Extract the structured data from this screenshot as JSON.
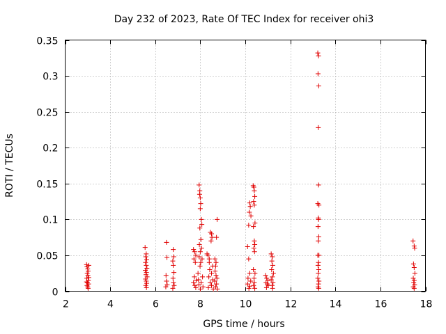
{
  "chart_data": {
    "type": "scatter",
    "title": "Day 232 of 2023, Rate Of TEC Index for receiver ohi3",
    "xlabel": "GPS time / hours",
    "ylabel": "ROTI / TECUs",
    "xlim": [
      2,
      18
    ],
    "ylim": [
      0,
      0.35
    ],
    "xticks": [
      2,
      4,
      6,
      8,
      10,
      12,
      14,
      16,
      18
    ],
    "yticks": [
      0,
      0.05,
      0.1,
      0.15,
      0.2,
      0.25,
      0.3,
      0.35
    ],
    "grid": true,
    "marker": "plus",
    "color": "#e00000",
    "series": [
      {
        "values": [
          [
            2.95,
            0.037
          ],
          [
            2.97,
            0.034
          ],
          [
            3.0,
            0.031
          ],
          [
            3.02,
            0.028
          ],
          [
            3.05,
            0.036
          ],
          [
            2.98,
            0.025
          ],
          [
            3.01,
            0.022
          ],
          [
            2.96,
            0.018
          ],
          [
            3.03,
            0.015
          ],
          [
            2.99,
            0.012
          ],
          [
            3.04,
            0.01
          ],
          [
            2.97,
            0.008
          ],
          [
            3.0,
            0.006
          ],
          [
            3.02,
            0.004
          ],
          [
            2.95,
            0.013
          ],
          [
            3.05,
            0.019
          ],
          [
            5.55,
            0.061
          ],
          [
            5.6,
            0.052
          ],
          [
            5.58,
            0.048
          ],
          [
            5.62,
            0.044
          ],
          [
            5.57,
            0.04
          ],
          [
            5.6,
            0.036
          ],
          [
            5.63,
            0.032
          ],
          [
            5.56,
            0.029
          ],
          [
            5.61,
            0.026
          ],
          [
            5.59,
            0.023
          ],
          [
            5.64,
            0.02
          ],
          [
            5.57,
            0.017
          ],
          [
            5.6,
            0.014
          ],
          [
            5.62,
            0.011
          ],
          [
            5.58,
            0.008
          ],
          [
            5.61,
            0.005
          ],
          [
            6.5,
            0.068
          ],
          [
            6.52,
            0.047
          ],
          [
            6.48,
            0.022
          ],
          [
            6.5,
            0.014
          ],
          [
            6.53,
            0.009
          ],
          [
            6.47,
            0.006
          ],
          [
            6.8,
            0.058
          ],
          [
            6.82,
            0.048
          ],
          [
            6.78,
            0.042
          ],
          [
            6.8,
            0.036
          ],
          [
            6.83,
            0.026
          ],
          [
            6.79,
            0.018
          ],
          [
            6.81,
            0.012
          ],
          [
            6.84,
            0.008
          ],
          [
            6.78,
            0.004
          ],
          [
            7.7,
            0.058
          ],
          [
            7.75,
            0.055
          ],
          [
            7.8,
            0.05
          ],
          [
            7.72,
            0.045
          ],
          [
            7.78,
            0.04
          ],
          [
            7.74,
            0.02
          ],
          [
            7.82,
            0.015
          ],
          [
            7.7,
            0.012
          ],
          [
            7.76,
            0.008
          ],
          [
            7.8,
            0.005
          ],
          [
            7.95,
            0.148
          ],
          [
            7.98,
            0.14
          ],
          [
            7.97,
            0.135
          ],
          [
            8.0,
            0.13
          ],
          [
            8.02,
            0.122
          ],
          [
            8.0,
            0.115
          ],
          [
            8.05,
            0.1
          ],
          [
            8.07,
            0.093
          ],
          [
            7.98,
            0.088
          ],
          [
            8.03,
            0.072
          ],
          [
            7.96,
            0.065
          ],
          [
            8.06,
            0.06
          ],
          [
            8.0,
            0.055
          ],
          [
            7.95,
            0.048
          ],
          [
            8.08,
            0.045
          ],
          [
            8.02,
            0.04
          ],
          [
            7.99,
            0.035
          ],
          [
            7.9,
            0.025
          ],
          [
            8.1,
            0.02
          ],
          [
            7.92,
            0.016
          ],
          [
            8.04,
            0.012
          ],
          [
            7.94,
            0.009
          ],
          [
            8.12,
            0.006
          ],
          [
            8.0,
            0.003
          ],
          [
            8.3,
            0.052
          ],
          [
            8.35,
            0.05
          ],
          [
            8.4,
            0.045
          ],
          [
            8.45,
            0.082
          ],
          [
            8.5,
            0.08
          ],
          [
            8.52,
            0.075
          ],
          [
            8.48,
            0.07
          ],
          [
            8.4,
            0.04
          ],
          [
            8.55,
            0.035
          ],
          [
            8.42,
            0.03
          ],
          [
            8.5,
            0.025
          ],
          [
            8.38,
            0.02
          ],
          [
            8.56,
            0.016
          ],
          [
            8.44,
            0.012
          ],
          [
            8.5,
            0.008
          ],
          [
            8.36,
            0.005
          ],
          [
            8.58,
            0.003
          ],
          [
            8.65,
            0.045
          ],
          [
            8.7,
            0.04
          ],
          [
            8.68,
            0.035
          ],
          [
            8.72,
            0.075
          ],
          [
            8.75,
            0.1
          ],
          [
            8.66,
            0.028
          ],
          [
            8.7,
            0.022
          ],
          [
            8.74,
            0.018
          ],
          [
            8.64,
            0.014
          ],
          [
            8.72,
            0.01
          ],
          [
            8.68,
            0.006
          ],
          [
            8.76,
            0.003
          ],
          [
            10.1,
            0.062
          ],
          [
            10.15,
            0.092
          ],
          [
            10.2,
            0.123
          ],
          [
            10.22,
            0.118
          ],
          [
            10.18,
            0.11
          ],
          [
            10.25,
            0.105
          ],
          [
            10.15,
            0.045
          ],
          [
            10.2,
            0.025
          ],
          [
            10.12,
            0.018
          ],
          [
            10.24,
            0.014
          ],
          [
            10.1,
            0.01
          ],
          [
            10.2,
            0.007
          ],
          [
            10.16,
            0.004
          ],
          [
            10.35,
            0.147
          ],
          [
            10.38,
            0.145
          ],
          [
            10.4,
            0.14
          ],
          [
            10.42,
            0.132
          ],
          [
            10.37,
            0.125
          ],
          [
            10.4,
            0.12
          ],
          [
            10.43,
            0.095
          ],
          [
            10.36,
            0.09
          ],
          [
            10.4,
            0.07
          ],
          [
            10.42,
            0.065
          ],
          [
            10.38,
            0.06
          ],
          [
            10.41,
            0.055
          ],
          [
            10.36,
            0.03
          ],
          [
            10.43,
            0.025
          ],
          [
            10.39,
            0.018
          ],
          [
            10.4,
            0.012
          ],
          [
            10.37,
            0.008
          ],
          [
            10.42,
            0.004
          ],
          [
            10.9,
            0.022
          ],
          [
            10.95,
            0.018
          ],
          [
            11.0,
            0.015
          ],
          [
            10.92,
            0.012
          ],
          [
            10.98,
            0.01
          ],
          [
            11.02,
            0.008
          ],
          [
            10.94,
            0.005
          ],
          [
            11.15,
            0.052
          ],
          [
            11.2,
            0.048
          ],
          [
            11.18,
            0.042
          ],
          [
            11.22,
            0.036
          ],
          [
            11.17,
            0.03
          ],
          [
            11.25,
            0.025
          ],
          [
            11.2,
            0.02
          ],
          [
            11.15,
            0.016
          ],
          [
            11.23,
            0.012
          ],
          [
            11.19,
            0.008
          ],
          [
            11.21,
            0.004
          ],
          [
            13.22,
            0.332
          ],
          [
            13.25,
            0.328
          ],
          [
            13.23,
            0.303
          ],
          [
            13.26,
            0.286
          ],
          [
            13.24,
            0.228
          ],
          [
            13.25,
            0.148
          ],
          [
            13.22,
            0.122
          ],
          [
            13.27,
            0.12
          ],
          [
            13.24,
            0.102
          ],
          [
            13.25,
            0.1
          ],
          [
            13.23,
            0.09
          ],
          [
            13.26,
            0.076
          ],
          [
            13.24,
            0.07
          ],
          [
            13.22,
            0.05
          ],
          [
            13.27,
            0.05
          ],
          [
            13.25,
            0.04
          ],
          [
            13.23,
            0.036
          ],
          [
            13.26,
            0.03
          ],
          [
            13.24,
            0.025
          ],
          [
            13.22,
            0.018
          ],
          [
            13.27,
            0.014
          ],
          [
            13.25,
            0.01
          ],
          [
            13.23,
            0.006
          ],
          [
            13.26,
            0.004
          ],
          [
            17.45,
            0.07
          ],
          [
            17.5,
            0.063
          ],
          [
            17.52,
            0.06
          ],
          [
            17.47,
            0.038
          ],
          [
            17.5,
            0.033
          ],
          [
            17.53,
            0.025
          ],
          [
            17.46,
            0.018
          ],
          [
            17.5,
            0.015
          ],
          [
            17.48,
            0.012
          ],
          [
            17.52,
            0.009
          ],
          [
            17.46,
            0.006
          ],
          [
            17.5,
            0.004
          ]
        ]
      }
    ]
  }
}
